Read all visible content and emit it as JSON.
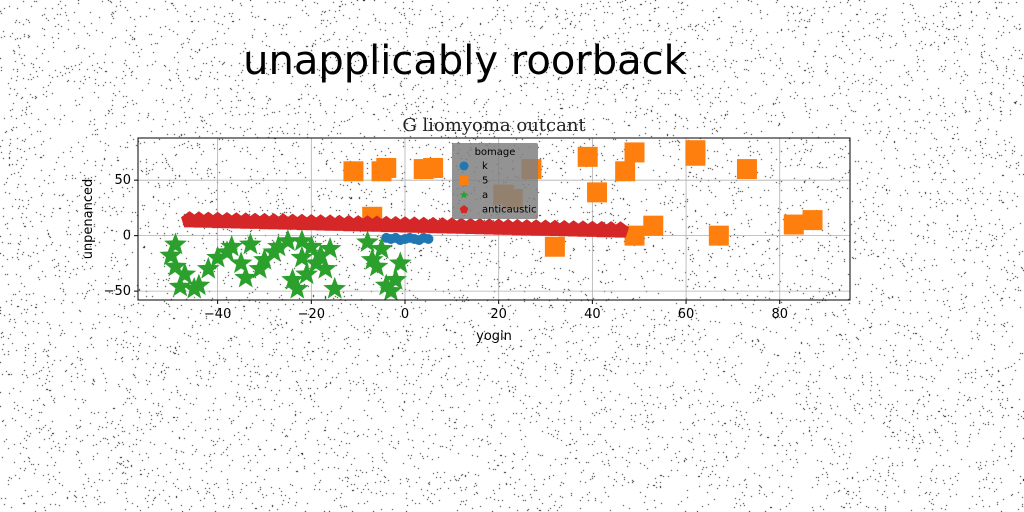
{
  "page_title": "unapplicably roorback",
  "chart_data": {
    "type": "scatter",
    "title": "G liomyoma outcant",
    "xlabel": "yogin",
    "ylabel": "unpenanced",
    "xlim": [
      -57,
      95
    ],
    "ylim": [
      -58,
      88
    ],
    "xticks": [
      -40,
      -20,
      0,
      20,
      40,
      60,
      80
    ],
    "yticks": [
      -50,
      0,
      50
    ],
    "grid": true,
    "legend": {
      "title": "bomage",
      "placement": "top-center"
    },
    "series": [
      {
        "name": "k",
        "marker": "circle",
        "color": "#1f77b4",
        "x": [
          -4,
          -3,
          -2,
          -1,
          0,
          1,
          2,
          3,
          4,
          5
        ],
        "y": [
          -2,
          -3,
          -2,
          -4,
          -3,
          -2,
          -3,
          -4,
          -2,
          -3
        ]
      },
      {
        "name": "5",
        "marker": "square",
        "color": "#ff7f0e",
        "x": [
          -11,
          -5,
          -4,
          -7,
          4,
          6,
          27,
          21,
          23,
          32,
          39,
          41,
          47,
          49,
          49,
          53,
          62,
          62,
          67,
          73,
          83,
          87
        ],
        "y": [
          58,
          58,
          61,
          17,
          60,
          61,
          60,
          37,
          33,
          -10,
          71,
          39,
          58,
          75,
          0,
          9,
          77,
          72,
          0,
          60,
          10,
          14
        ]
      },
      {
        "name": "a",
        "marker": "star",
        "color": "#2ca02c",
        "x": [
          -50,
          -49,
          -48,
          -45,
          -47,
          -49,
          -44,
          -42,
          -40,
          -38,
          -37,
          -35,
          -34,
          -33,
          -31,
          -30,
          -28,
          -27,
          -25,
          -23,
          -22,
          -21,
          -20,
          -19,
          -18,
          -17,
          -16,
          -22,
          -24,
          -8,
          -7,
          -6,
          -5,
          -4,
          -3,
          -2,
          -1,
          -15
        ],
        "y": [
          -18,
          -8,
          -46,
          -48,
          -35,
          -28,
          -45,
          -30,
          -20,
          -15,
          -10,
          -25,
          -38,
          -8,
          -30,
          -22,
          -15,
          -10,
          -5,
          -48,
          -20,
          -35,
          -10,
          -25,
          -18,
          -30,
          -12,
          -5,
          -40,
          -6,
          -22,
          -28,
          -12,
          -45,
          -50,
          -40,
          -25,
          -48
        ]
      },
      {
        "name": "anticaustic",
        "marker": "pentagon",
        "color": "#d62728",
        "x": [
          -46,
          -44,
          -42,
          -40,
          -38,
          -36,
          -34,
          -32,
          -30,
          -28,
          -26,
          -24,
          -22,
          -20,
          -18,
          -16,
          -14,
          -12,
          -10,
          -8,
          -6,
          -4,
          -2,
          0,
          2,
          4,
          6,
          8,
          10,
          12,
          14,
          16,
          18,
          20,
          22,
          24,
          26,
          28,
          30,
          32,
          34,
          36,
          38,
          40,
          42,
          44,
          46
        ],
        "y": [
          14.0,
          13.8,
          13.6,
          13.4,
          13.2,
          13.0,
          12.8,
          12.6,
          12.4,
          12.2,
          12.0,
          11.8,
          11.6,
          11.4,
          11.2,
          11.0,
          10.8,
          10.6,
          10.4,
          10.2,
          10.0,
          9.8,
          9.6,
          9.4,
          9.2,
          9.0,
          8.8,
          8.6,
          8.4,
          8.2,
          8.0,
          7.8,
          7.6,
          7.4,
          7.2,
          7.0,
          6.8,
          6.6,
          6.4,
          6.2,
          6.0,
          5.8,
          5.6,
          5.4,
          5.2,
          5.0,
          4.8
        ]
      }
    ]
  }
}
